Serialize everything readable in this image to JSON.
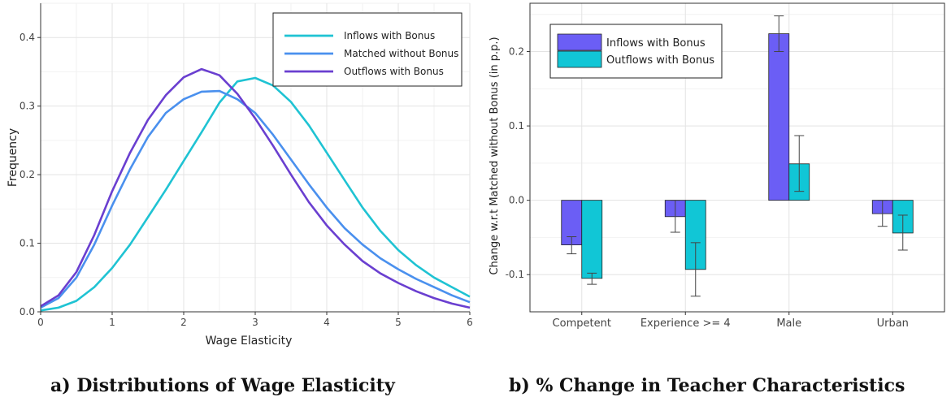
{
  "captions": {
    "a": "a) Distributions of Wage Elasticity",
    "b": "b) % Change in Teacher Characteristics"
  },
  "chart_data": [
    {
      "type": "line",
      "title": "",
      "xlabel": "Wage Elasticity",
      "ylabel": "Frequency",
      "xlim": [
        0,
        6
      ],
      "ylim": [
        0,
        0.45
      ],
      "x_ticks": [
        "0",
        "1",
        "2",
        "3",
        "4",
        "5",
        "6"
      ],
      "y_ticks": [
        "0.0",
        "0.1",
        "0.2",
        "0.3",
        "0.4"
      ],
      "grid": true,
      "legend_position": "top-right",
      "series": [
        {
          "name": "Inflows with Bonus",
          "color": "#1fc3d3",
          "x": [
            0,
            0.25,
            0.5,
            0.75,
            1,
            1.25,
            1.5,
            1.75,
            2,
            2.25,
            2.5,
            2.75,
            3,
            3.25,
            3.5,
            3.75,
            4,
            4.25,
            4.5,
            4.75,
            5,
            5.25,
            5.5,
            5.75,
            6
          ],
          "y": [
            0.002,
            0.006,
            0.016,
            0.036,
            0.064,
            0.098,
            0.138,
            0.178,
            0.22,
            0.262,
            0.305,
            0.336,
            0.341,
            0.33,
            0.306,
            0.272,
            0.232,
            0.192,
            0.152,
            0.118,
            0.09,
            0.068,
            0.05,
            0.036,
            0.022
          ]
        },
        {
          "name": "Matched without Bonus",
          "color": "#4a90ee",
          "x": [
            0,
            0.25,
            0.5,
            0.75,
            1,
            1.25,
            1.5,
            1.75,
            2,
            2.25,
            2.5,
            2.75,
            3,
            3.25,
            3.5,
            3.75,
            4,
            4.25,
            4.5,
            4.75,
            5,
            5.25,
            5.5,
            5.75,
            6
          ],
          "y": [
            0.006,
            0.02,
            0.05,
            0.098,
            0.155,
            0.208,
            0.255,
            0.29,
            0.31,
            0.321,
            0.322,
            0.31,
            0.29,
            0.258,
            0.222,
            0.186,
            0.152,
            0.122,
            0.098,
            0.078,
            0.062,
            0.048,
            0.036,
            0.024,
            0.014
          ]
        },
        {
          "name": "Outflows with Bonus",
          "color": "#6a3fd0",
          "x": [
            0,
            0.25,
            0.5,
            0.75,
            1,
            1.25,
            1.5,
            1.75,
            2,
            2.25,
            2.5,
            2.75,
            3,
            3.25,
            3.5,
            3.75,
            4,
            4.25,
            4.5,
            4.75,
            5,
            5.25,
            5.5,
            5.75,
            6
          ],
          "y": [
            0.008,
            0.024,
            0.058,
            0.112,
            0.176,
            0.232,
            0.28,
            0.316,
            0.342,
            0.354,
            0.345,
            0.318,
            0.282,
            0.242,
            0.2,
            0.16,
            0.126,
            0.098,
            0.074,
            0.056,
            0.042,
            0.03,
            0.02,
            0.012,
            0.006
          ]
        }
      ]
    },
    {
      "type": "bar",
      "title": "",
      "xlabel": "",
      "ylabel": "Change w.r.t Matched without Bonus (in p.p.)",
      "categories": [
        "Competent",
        "Experience >= 4",
        "Male",
        "Urban"
      ],
      "ylim": [
        -0.15,
        0.265
      ],
      "y_ticks": [
        "-0.1",
        "0.0",
        "0.1",
        "0.2"
      ],
      "grid": true,
      "legend_position": "top-left",
      "series": [
        {
          "name": "Inflows with Bonus",
          "color": "#6b5ef5",
          "values": [
            -0.06,
            -0.022,
            0.224,
            -0.018
          ],
          "error_low": [
            -0.072,
            -0.043,
            0.2,
            -0.035
          ],
          "error_high": [
            -0.049,
            0.0,
            0.248,
            0.0
          ]
        },
        {
          "name": "Outflows with Bonus",
          "color": "#11c6d6",
          "values": [
            -0.105,
            -0.093,
            0.049,
            -0.044
          ],
          "error_low": [
            -0.113,
            -0.129,
            0.012,
            -0.067
          ],
          "error_high": [
            -0.098,
            -0.057,
            0.087,
            -0.02
          ]
        }
      ]
    }
  ]
}
